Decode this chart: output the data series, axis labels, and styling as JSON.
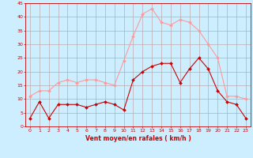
{
  "hours": [
    0,
    1,
    2,
    3,
    4,
    5,
    6,
    7,
    8,
    9,
    10,
    11,
    12,
    13,
    14,
    15,
    16,
    17,
    18,
    19,
    20,
    21,
    22,
    23
  ],
  "wind_avg": [
    3,
    9,
    3,
    8,
    8,
    8,
    7,
    8,
    9,
    8,
    6,
    17,
    20,
    22,
    23,
    23,
    16,
    21,
    25,
    21,
    13,
    9,
    8,
    3
  ],
  "wind_gust": [
    11,
    13,
    13,
    16,
    17,
    16,
    17,
    17,
    16,
    15,
    24,
    33,
    41,
    43,
    38,
    37,
    39,
    38,
    35,
    30,
    25,
    11,
    11,
    10
  ],
  "bg_color": "#cceeff",
  "grid_color": "#bb9999",
  "line_avg_color": "#cc0000",
  "line_gust_color": "#ff9999",
  "marker_avg_color": "#cc0000",
  "marker_gust_color": "#ff9999",
  "xlabel": "Vent moyen/en rafales ( km/h )",
  "ylim": [
    0,
    45
  ],
  "yticks": [
    0,
    5,
    10,
    15,
    20,
    25,
    30,
    35,
    40,
    45
  ],
  "xticks": [
    0,
    1,
    2,
    3,
    4,
    5,
    6,
    7,
    8,
    9,
    10,
    11,
    12,
    13,
    14,
    15,
    16,
    17,
    18,
    19,
    20,
    21,
    22,
    23
  ],
  "tick_color": "#cc0000",
  "xlabel_color": "#cc0000",
  "spine_color": "#cc0000"
}
